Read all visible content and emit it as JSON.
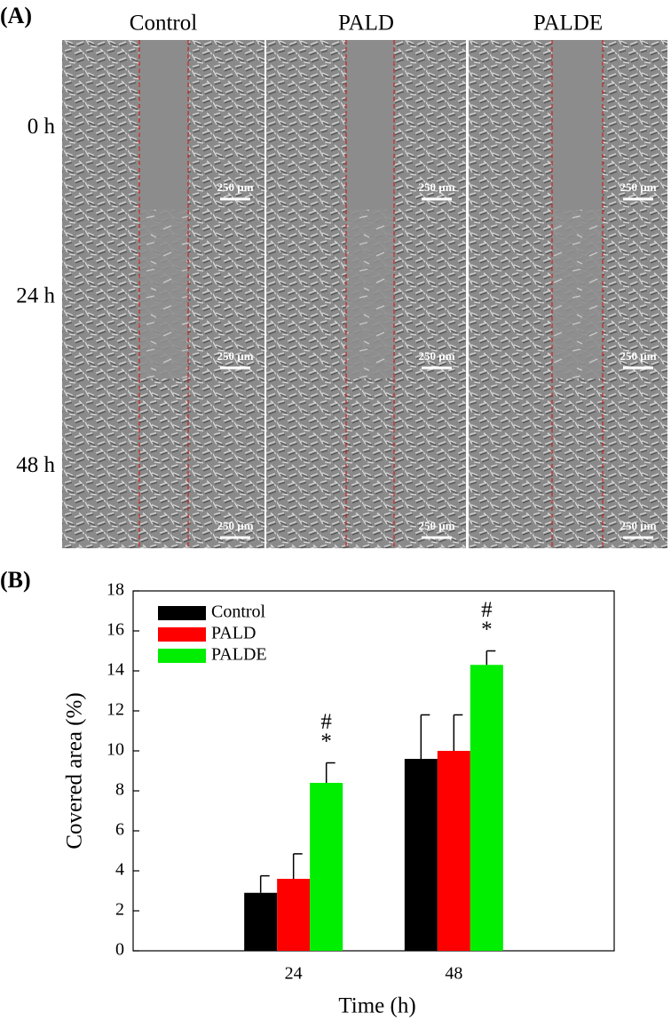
{
  "panel_a": {
    "label": "(A)",
    "columns": [
      "Control",
      "PALD",
      "PALDE"
    ],
    "rows": [
      "0 h",
      "24 h",
      "48 h"
    ],
    "scale_bar": "250 µm"
  },
  "chart_data": {
    "type": "bar",
    "panel_label": "(B)",
    "xlabel": "Time (h)",
    "ylabel": "Covered area (%)",
    "categories": [
      "24",
      "48"
    ],
    "series": [
      {
        "name": "Control",
        "color": "#000000",
        "values": [
          2.9,
          9.6
        ],
        "errors": [
          0.85,
          2.2
        ]
      },
      {
        "name": "PALD",
        "color": "#ff0000",
        "values": [
          3.6,
          10.0
        ],
        "errors": [
          1.25,
          1.8
        ]
      },
      {
        "name": "PALDE",
        "color": "#00ee00",
        "values": [
          8.4,
          14.3
        ],
        "errors": [
          1.0,
          0.7
        ]
      }
    ],
    "annotations": [
      "#",
      "*"
    ],
    "ylim": [
      0,
      18
    ],
    "yticks": [
      0,
      2,
      4,
      6,
      8,
      10,
      12,
      14,
      16,
      18
    ],
    "legend": "upper left"
  }
}
